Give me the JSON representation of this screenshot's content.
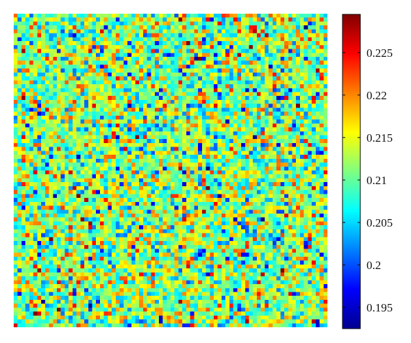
{
  "chart_data": {
    "type": "heatmap",
    "title": "",
    "xlabel": "",
    "ylabel": "",
    "grid": false,
    "rows": 80,
    "cols": 80,
    "value_range": [
      0.1925,
      0.2295
    ],
    "mean": 0.2115,
    "colormap": "jet",
    "colorbar": {
      "position": "right",
      "ticks": [
        0.195,
        0.2,
        0.205,
        0.21,
        0.215,
        0.22,
        0.225
      ],
      "tick_labels": [
        "0.195",
        "0.2",
        "0.205",
        "0.21",
        "0.215",
        "0.22",
        "0.225"
      ]
    },
    "note": "Per-pixel values appear as spatially uncorrelated noise clustered around the mean"
  }
}
